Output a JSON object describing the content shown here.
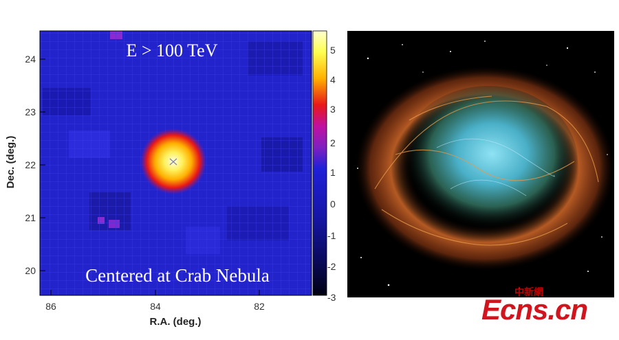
{
  "left_panel": {
    "overlay_title": "E > 100 TeV",
    "overlay_caption": "Centered at Crab Nebula",
    "x_axis_label": "R.A. (deg.)",
    "y_axis_label": "Dec. (deg.)",
    "x_ticks": [
      "86",
      "84",
      "82"
    ],
    "y_ticks": [
      "24",
      "23",
      "22",
      "21",
      "20"
    ],
    "colorbar_ticks": [
      "5",
      "4",
      "3",
      "2",
      "1",
      "0",
      "-1",
      "-2",
      "-3"
    ],
    "colors": {
      "background_map": "#1f1fd0",
      "hotspot_core": "#ffffa0",
      "hotspot_mid": "#ffc000",
      "hotspot_edge": "#e01010"
    }
  },
  "right_panel": {
    "subject": "crab-nebula-photo",
    "colors": {
      "filaments": "#e0792e",
      "core": "#6ec8e8",
      "sky": "#000000"
    }
  },
  "watermark": {
    "cn_text": "中新網",
    "en_text": "Ecns.cn",
    "color": "#d0151f"
  }
}
